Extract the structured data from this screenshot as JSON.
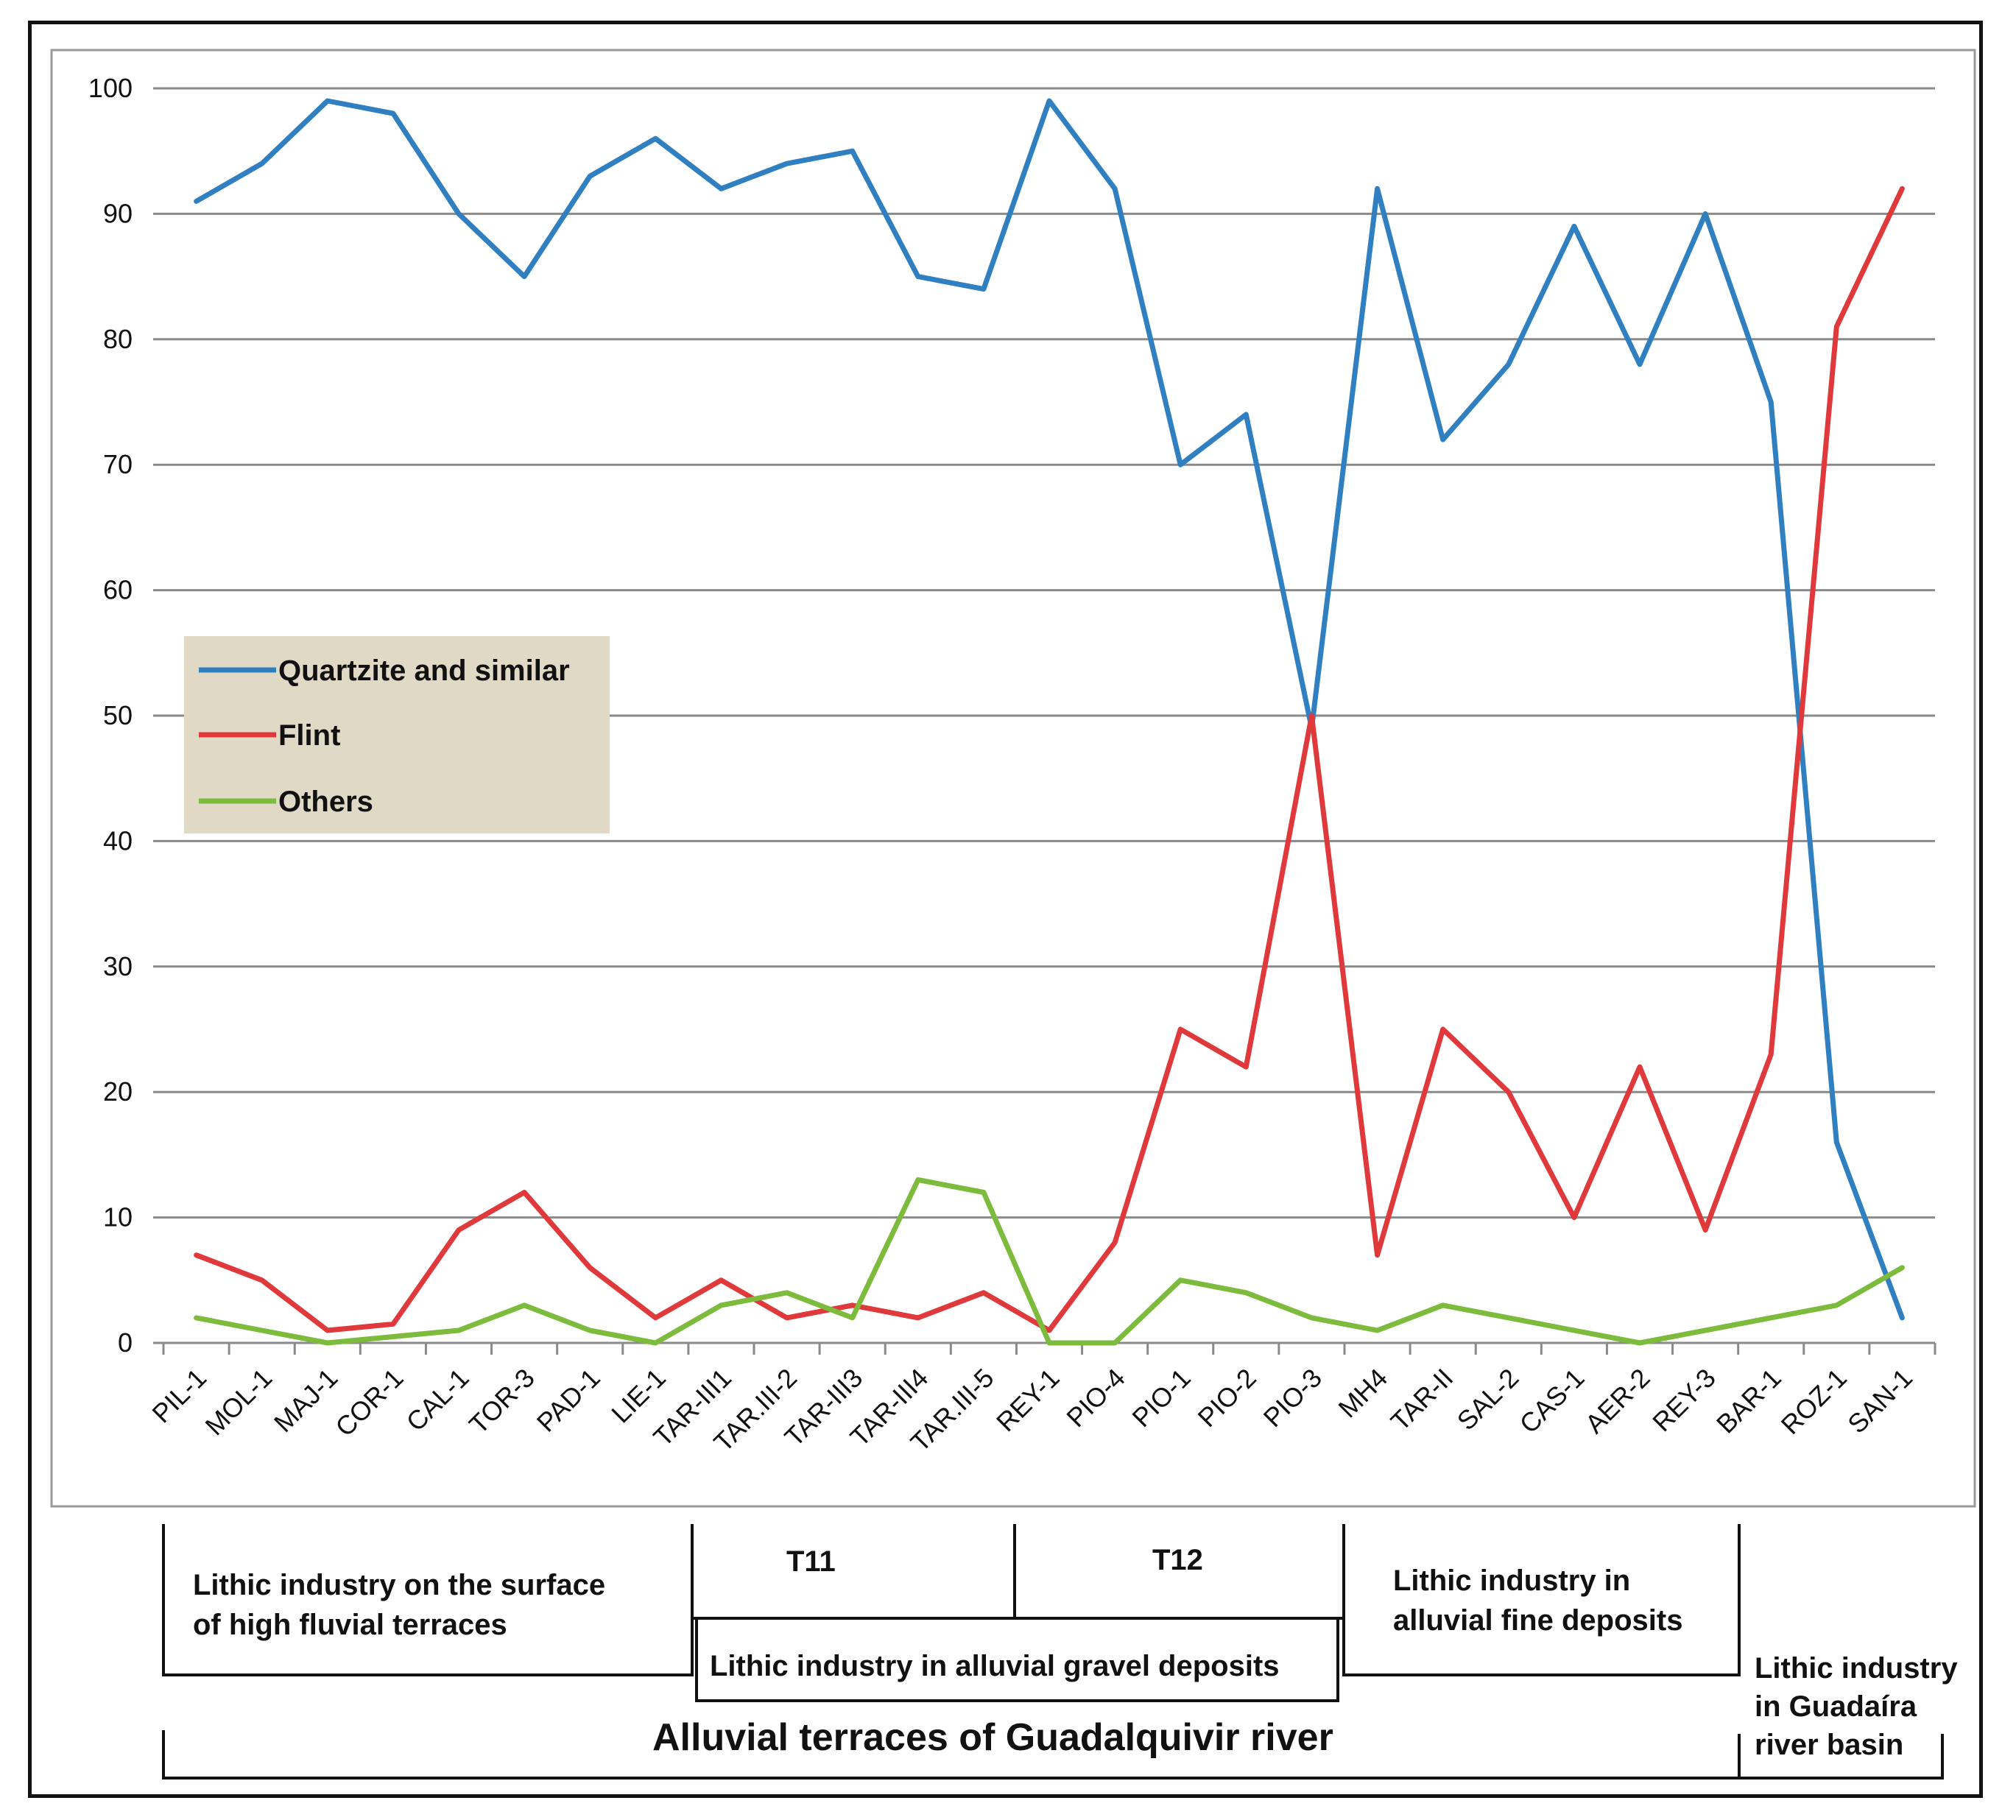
{
  "chart_data": {
    "type": "line",
    "categories": [
      "PIL-1",
      "MOL-1",
      "MAJ-1",
      "COR-1",
      "CAL-1",
      "TOR-3",
      "PAD-1",
      "LIE-1",
      "TAR-III1",
      "TAR.III-2",
      "TAR-III3",
      "TAR-III4",
      "TAR.III-5",
      "REY-1",
      "PIO-4",
      "PIO-1",
      "PIO-2",
      "PIO-3",
      "MH4",
      "TAR-II",
      "SAL-2",
      "CAS-1",
      "AER-2",
      "REY-3",
      "BAR-1",
      "ROZ-1",
      "SAN-1"
    ],
    "series": [
      {
        "name": "Quartzite and similar",
        "color": "#2f7fc1",
        "values": [
          91,
          94,
          99,
          98,
          90,
          85,
          93,
          96,
          92,
          94,
          95,
          85,
          84,
          99,
          92,
          70,
          74,
          49,
          92,
          72,
          78,
          89,
          78,
          90,
          75,
          16,
          2
        ]
      },
      {
        "name": "Flint",
        "color": "#e0393b",
        "values": [
          7,
          5,
          1,
          1.5,
          9,
          12,
          6,
          2,
          5,
          2,
          3,
          2,
          4,
          1,
          8,
          25,
          22,
          50,
          7,
          25,
          20,
          10,
          22,
          9,
          23,
          81,
          92
        ]
      },
      {
        "name": "Others",
        "color": "#7dbb3c",
        "values": [
          2,
          1,
          0,
          0.5,
          1,
          3,
          1,
          0,
          3,
          4,
          2,
          13,
          12,
          0,
          0,
          5,
          4,
          2,
          1,
          3,
          2,
          1,
          0,
          1,
          2,
          3,
          6
        ]
      }
    ],
    "y_ticks": [
      "0",
      "10",
      "20",
      "30",
      "40",
      "50",
      "60",
      "70",
      "80",
      "90",
      "100"
    ],
    "ylim": [
      0,
      100
    ],
    "grid": true,
    "legend_position": "left-middle"
  },
  "groups": {
    "surface": "Lithic industry on the surface\nof high fluvial terraces",
    "t11": "T11",
    "t12": "T12",
    "gravel": "Lithic industry in alluvial gravel deposits",
    "fine": "Lithic industry in\nalluvial fine deposits",
    "guadaira": "Lithic industry\nin Guadaíra\nriver basin",
    "guadalquivir": "Alluvial terraces of Guadalquivir river"
  },
  "colors": {
    "grid": "#8a8a8a",
    "legend_bg": "#e0d9c5",
    "frame": "#111111"
  }
}
